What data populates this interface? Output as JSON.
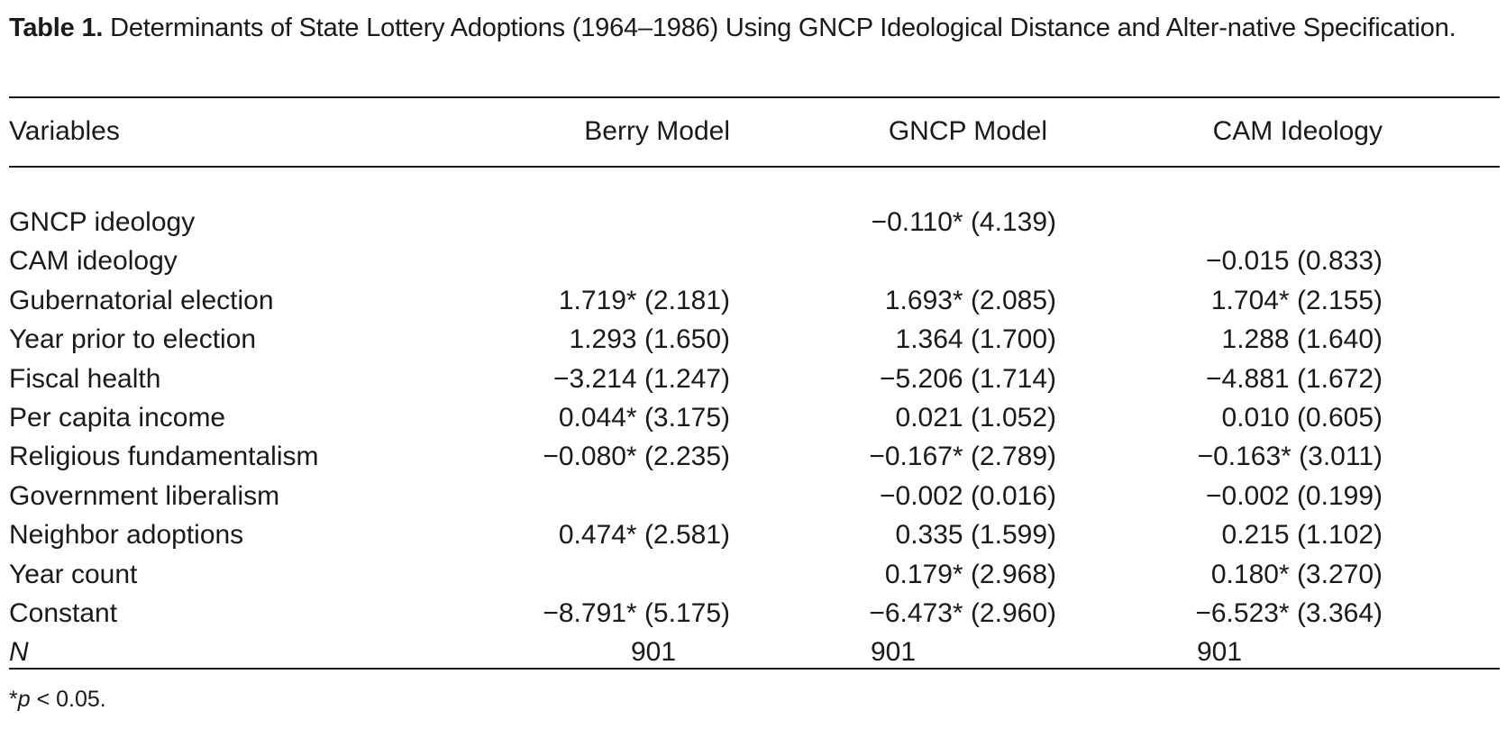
{
  "caption": {
    "label": "Table 1.",
    "text": " Determinants of State Lottery Adoptions (1964–1986) Using GNCP Ideological Distance and Alter-native Specification."
  },
  "table": {
    "headers": [
      "Variables",
      "Berry Model",
      "GNCP Model",
      "CAM Ideology"
    ],
    "rows": [
      {
        "variable": "GNCP ideology",
        "berry": "",
        "gncp": "−0.110* (4.139)",
        "cam": ""
      },
      {
        "variable": "CAM ideology",
        "berry": "",
        "gncp": "",
        "cam": "−0.015 (0.833)"
      },
      {
        "variable": "Gubernatorial election",
        "berry": "1.719* (2.181)",
        "gncp": "1.693* (2.085)",
        "cam": "1.704* (2.155)"
      },
      {
        "variable": "Year prior to election",
        "berry": "1.293 (1.650)",
        "gncp": "1.364 (1.700)",
        "cam": "1.288 (1.640)"
      },
      {
        "variable": "Fiscal health",
        "berry": "−3.214 (1.247)",
        "gncp": "−5.206 (1.714)",
        "cam": "−4.881 (1.672)"
      },
      {
        "variable": "Per capita income",
        "berry": "0.044* (3.175)",
        "gncp": "0.021 (1.052)",
        "cam": "0.010 (0.605)"
      },
      {
        "variable": "Religious fundamentalism",
        "berry": "−0.080* (2.235)",
        "gncp": "−0.167* (2.789)",
        "cam": "−0.163* (3.011)"
      },
      {
        "variable": "Government liberalism",
        "berry": "",
        "gncp": "−0.002 (0.016)",
        "cam": "−0.002 (0.199)"
      },
      {
        "variable": "Neighbor adoptions",
        "berry": "0.474* (2.581)",
        "gncp": "0.335 (1.599)",
        "cam": "0.215 (1.102)"
      },
      {
        "variable": "Year count",
        "berry": "",
        "gncp": "0.179* (2.968)",
        "cam": "0.180* (3.270)"
      },
      {
        "variable": "Constant",
        "berry": "−8.791* (5.175)",
        "gncp": "−6.473* (2.960)",
        "cam": "−6.523* (3.364)"
      }
    ],
    "n_row": {
      "label": "N",
      "berry": "901",
      "gncp": "901",
      "cam": "901"
    }
  },
  "footnote": {
    "star": "*",
    "p": "p",
    "rest": " < 0.05."
  }
}
